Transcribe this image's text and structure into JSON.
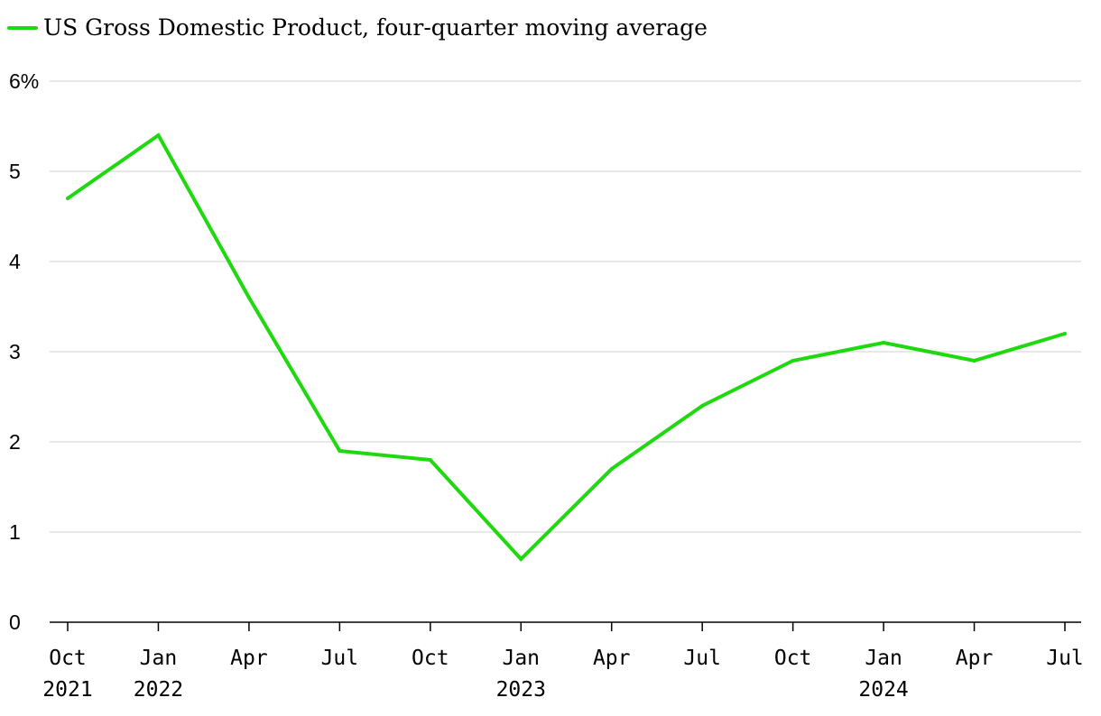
{
  "chart_data": {
    "type": "line",
    "title": "",
    "xlabel": "",
    "ylabel": "",
    "legend": {
      "placement": "top-left",
      "entries": [
        "US Gross Domestic Product, four-quarter moving average"
      ]
    },
    "categories": [
      {
        "month": "Oct",
        "year": "2021"
      },
      {
        "month": "Jan",
        "year": "2022"
      },
      {
        "month": "Apr",
        "year": ""
      },
      {
        "month": "Jul",
        "year": ""
      },
      {
        "month": "Oct",
        "year": ""
      },
      {
        "month": "Jan",
        "year": "2023"
      },
      {
        "month": "Apr",
        "year": ""
      },
      {
        "month": "Jul",
        "year": ""
      },
      {
        "month": "Oct",
        "year": ""
      },
      {
        "month": "Jan",
        "year": "2024"
      },
      {
        "month": "Apr",
        "year": ""
      },
      {
        "month": "Jul",
        "year": ""
      }
    ],
    "series": [
      {
        "name": "US Gross Domestic Product, four-quarter moving average",
        "color": "#1ed90e",
        "values": [
          4.7,
          5.4,
          3.6,
          1.9,
          1.8,
          0.7,
          1.7,
          2.4,
          2.9,
          3.1,
          2.9,
          3.2
        ]
      }
    ],
    "ylim": [
      0,
      6
    ],
    "y_ticks": [
      {
        "value": 0,
        "label": "0"
      },
      {
        "value": 1,
        "label": "1"
      },
      {
        "value": 2,
        "label": "2"
      },
      {
        "value": 3,
        "label": "3"
      },
      {
        "value": 4,
        "label": "4"
      },
      {
        "value": 5,
        "label": "5"
      },
      {
        "value": 6,
        "label": "6%"
      }
    ],
    "grid": true,
    "colors": {
      "line": "#1ed90e",
      "grid": "#e1e1e1",
      "axis": "#000000"
    }
  }
}
